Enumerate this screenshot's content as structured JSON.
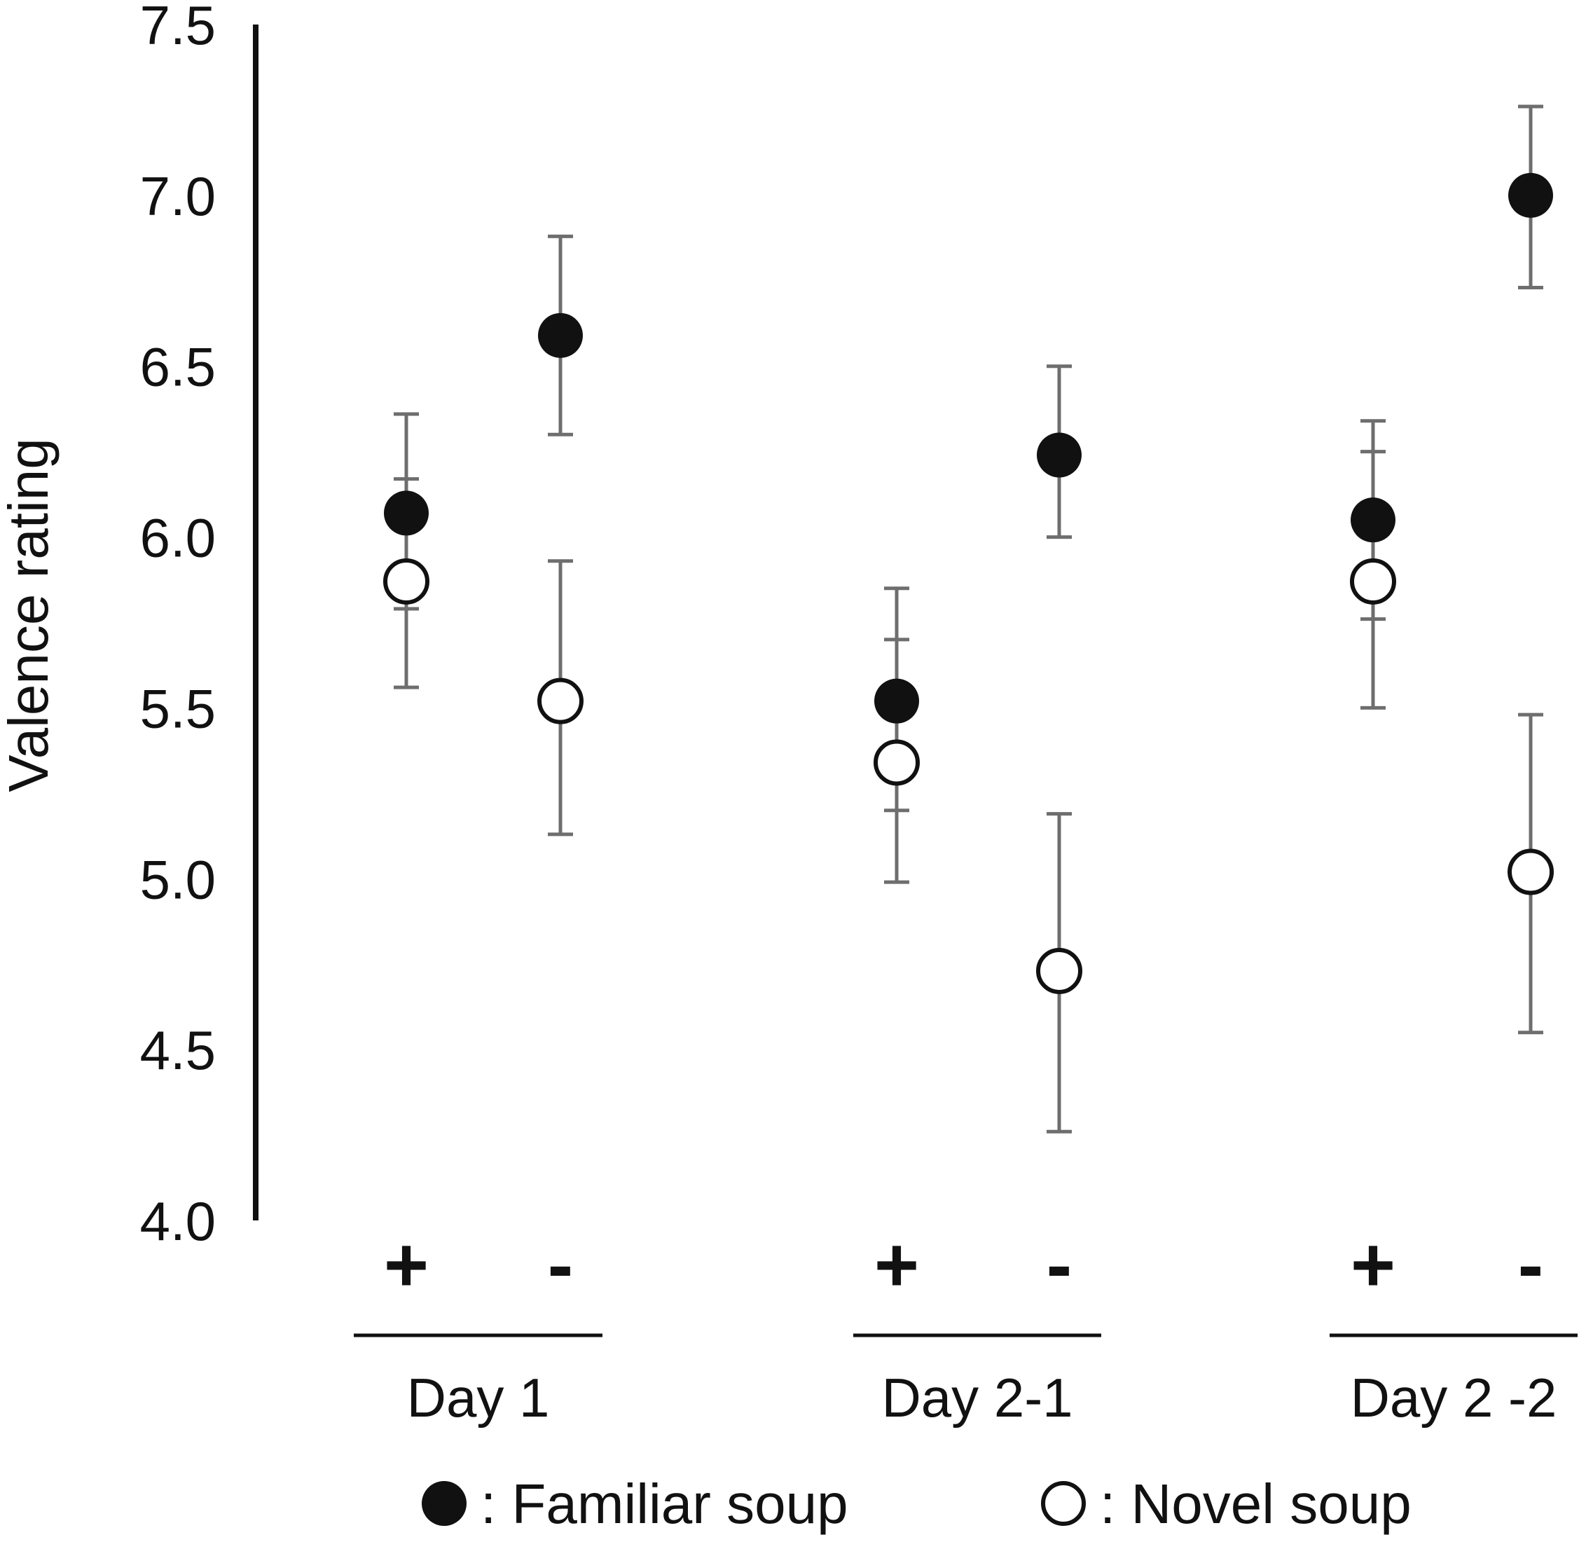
{
  "chart_data": {
    "type": "scatter",
    "title": "",
    "ylabel": "Valence rating",
    "ylim": [
      4.0,
      7.5
    ],
    "yticks": [
      "4.0",
      "4.5",
      "5.0",
      "5.5",
      "6.0",
      "6.5",
      "7.0",
      "7.5"
    ],
    "grid": false,
    "conditions": [
      "+",
      "-",
      "+",
      "-",
      "+",
      "-"
    ],
    "groups": [
      "Day 1",
      "Day 2-1",
      "Day 2 -2"
    ],
    "legend_placement": "bottom",
    "series": [
      {
        "name": "Familiar soup",
        "marker": "filled-circle",
        "color": "#111111",
        "values": [
          6.07,
          6.59,
          5.52,
          6.24,
          6.05,
          7.0
        ],
        "error_low": [
          5.79,
          6.3,
          5.2,
          6.0,
          5.76,
          6.73
        ],
        "error_high": [
          6.17,
          6.88,
          5.7,
          6.5,
          6.25,
          7.26
        ]
      },
      {
        "name": "Novel soup",
        "marker": "open-circle",
        "color": "#111111",
        "values": [
          5.87,
          5.52,
          5.34,
          4.73,
          5.87,
          5.02
        ],
        "error_low": [
          5.56,
          5.13,
          4.99,
          4.26,
          5.5,
          4.55
        ],
        "error_high": [
          6.36,
          5.93,
          5.85,
          5.19,
          6.34,
          5.48
        ]
      }
    ],
    "legend": [
      {
        "label": ": Familiar soup",
        "marker": "filled-circle"
      },
      {
        "label": ": Novel soup",
        "marker": "open-circle"
      }
    ]
  }
}
